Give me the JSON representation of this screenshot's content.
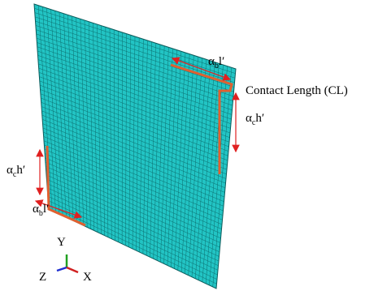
{
  "annotations": {
    "top_length": {
      "base": "α",
      "sub": "b",
      "tail": "l′"
    },
    "contact_length": "Contact Length (CL)",
    "right_height": {
      "base": "α",
      "sub": "c",
      "tail": "h′"
    },
    "left_height": {
      "base": "α",
      "sub": "c",
      "tail": "h′"
    },
    "bottom_length": {
      "base": "α",
      "sub": "b",
      "tail": "l′"
    }
  },
  "axes": {
    "y": "Y",
    "z": "Z",
    "x": "X"
  }
}
